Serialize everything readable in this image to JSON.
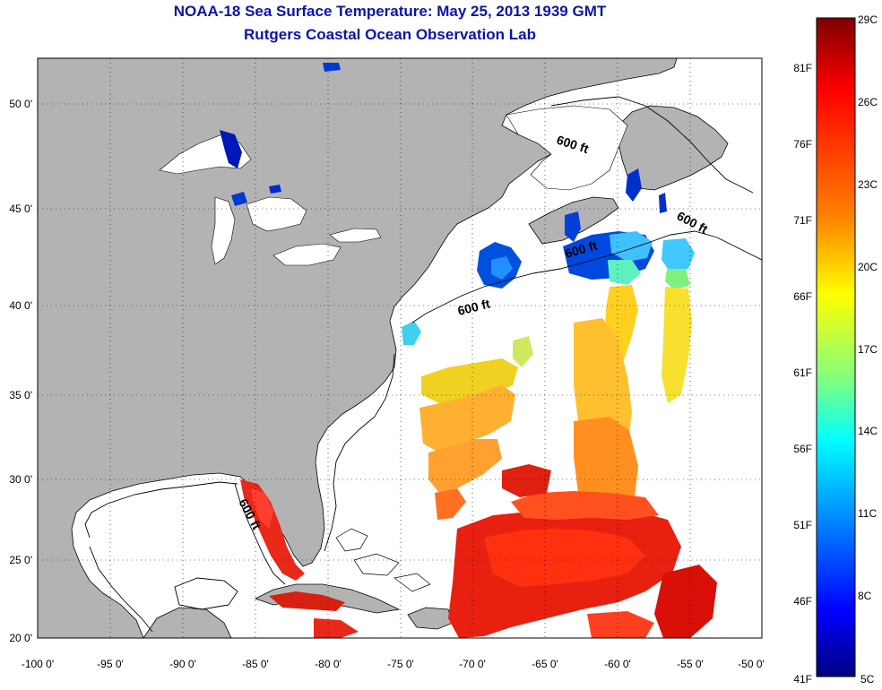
{
  "title": {
    "line1": "NOAA-18 Sea Surface Temperature:  May 25, 2013 1939 GMT",
    "line2": "Rutgers Coastal Ocean Observation Lab"
  },
  "map": {
    "lon_ticks": [
      "-100 0'",
      "-95 0'",
      "-90 0'",
      "-85 0'",
      "-80 0'",
      "-75 0'",
      "-70 0'",
      "-65 0'",
      "-60 0'",
      "-55 0'",
      "-50 0'"
    ],
    "lat_ticks": [
      "50 0'",
      "45 0'",
      "40 0'",
      "35 0'",
      "30 0'",
      "25 0'",
      "20 0'"
    ],
    "contour_labels": [
      "600 ft",
      "600 ft",
      "600 ft",
      "600 ft",
      "600 ft"
    ]
  },
  "colorbar": {
    "celsius_labels": [
      "29C",
      "26C",
      "23C",
      "20C",
      "17C",
      "14C",
      "11C",
      "8C",
      "5C"
    ],
    "fahrenheit_labels": [
      "81F",
      "76F",
      "71F",
      "66F",
      "61F",
      "56F",
      "51F",
      "46F",
      "41F"
    ],
    "colors": [
      "#7f0000",
      "#ff0000",
      "#ff8000",
      "#ffff00",
      "#80ff80",
      "#00ffff",
      "#0080ff",
      "#0000ff",
      "#00007f"
    ]
  },
  "colors": {
    "land": "#b3b3b3",
    "title": "#0b14a8"
  }
}
